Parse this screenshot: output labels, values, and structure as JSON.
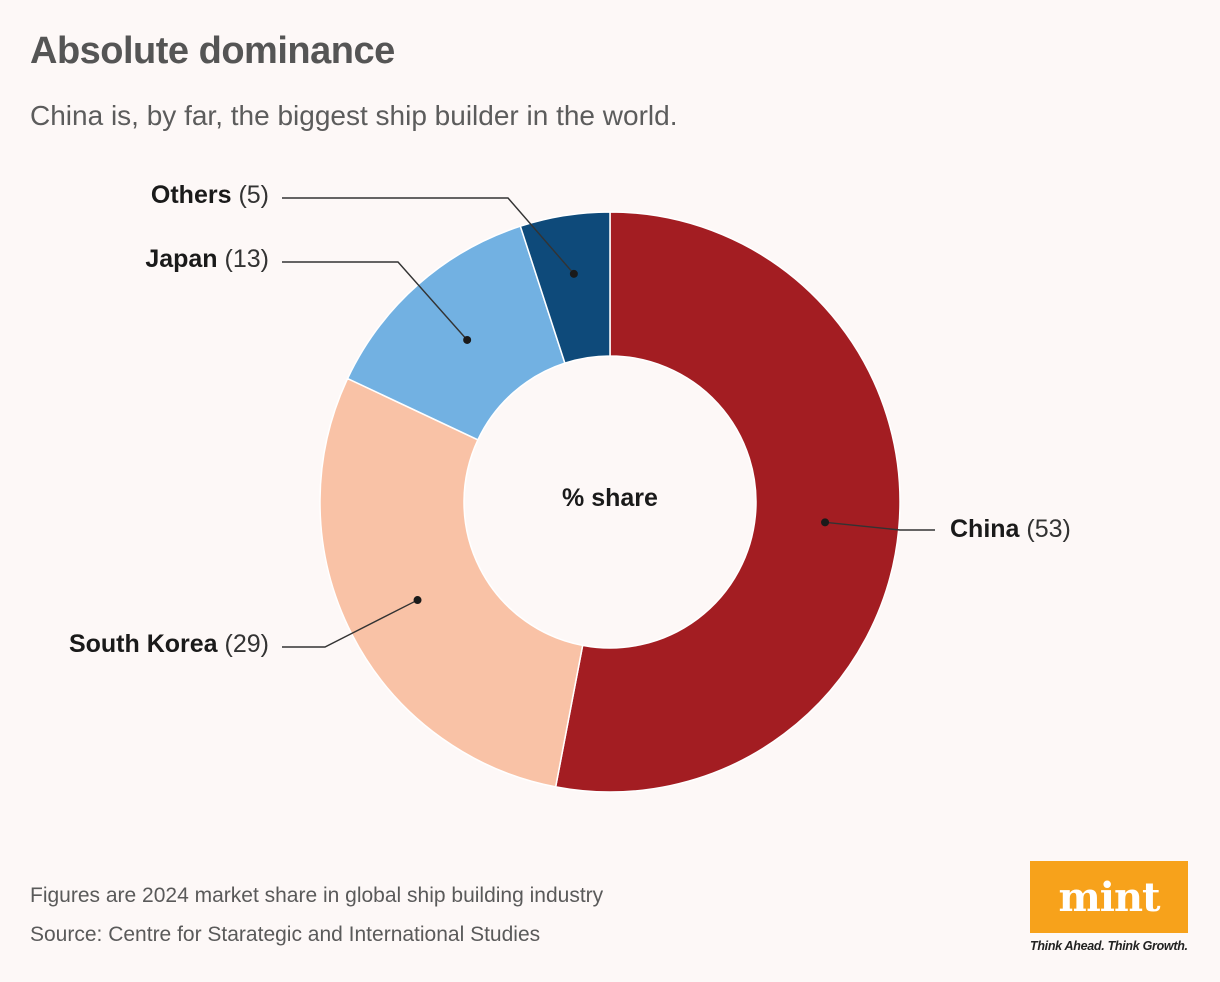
{
  "header": {
    "title": "Absolute dominance",
    "subtitle": "China is, by far, the biggest ship builder in the world."
  },
  "chart_data": {
    "type": "pie",
    "center_label": "% share",
    "slices": [
      {
        "label": "China",
        "value": 53,
        "value_text": "(53)",
        "color": "#a31d22"
      },
      {
        "label": "South Korea",
        "value": 29,
        "value_text": "(29)",
        "color": "#f9c2a6"
      },
      {
        "label": "Japan",
        "value": 13,
        "value_text": "(13)",
        "color": "#72b1e2"
      },
      {
        "label": "Others",
        "value": 5,
        "value_text": "(5)",
        "color": "#0e4a7a"
      }
    ]
  },
  "footer": {
    "note": "Figures are 2024 market share in global ship building industry",
    "source": "Source: Centre for Starategic and International Studies"
  },
  "brand": {
    "logo_text": "mint",
    "tagline": "Think Ahead. Think Growth.",
    "color": "#f7a21b"
  }
}
